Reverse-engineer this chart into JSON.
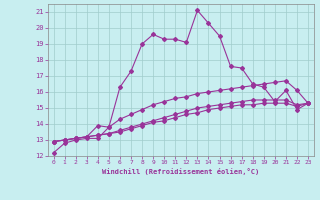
{
  "xlabel": "Windchill (Refroidissement éolien,°C)",
  "xlim": [
    -0.5,
    23.5
  ],
  "ylim": [
    12,
    21.5
  ],
  "xticks": [
    0,
    1,
    2,
    3,
    4,
    5,
    6,
    7,
    8,
    9,
    10,
    11,
    12,
    13,
    14,
    15,
    16,
    17,
    18,
    19,
    20,
    21,
    22,
    23
  ],
  "yticks": [
    12,
    13,
    14,
    15,
    16,
    17,
    18,
    19,
    20,
    21
  ],
  "background_color": "#c8eef0",
  "grid_color": "#a0cccc",
  "line_color": "#993399",
  "line1_x": [
    0,
    1,
    2,
    3,
    4,
    5,
    6,
    7,
    8,
    9,
    10,
    11,
    12,
    13,
    14,
    15,
    16,
    17,
    18,
    19,
    20,
    21,
    22,
    23
  ],
  "line1_y": [
    12.2,
    12.8,
    13.0,
    13.1,
    13.1,
    13.8,
    16.3,
    17.3,
    19.0,
    19.6,
    19.3,
    19.3,
    19.1,
    21.1,
    20.3,
    19.5,
    17.6,
    17.5,
    16.5,
    16.3,
    15.4,
    16.1,
    14.9,
    15.3
  ],
  "line2_x": [
    0,
    1,
    2,
    3,
    4,
    5,
    6,
    7,
    8,
    9,
    10,
    11,
    12,
    13,
    14,
    15,
    16,
    17,
    18,
    19,
    20,
    21,
    22,
    23
  ],
  "line2_y": [
    12.9,
    13.0,
    13.1,
    13.2,
    13.9,
    13.8,
    14.3,
    14.6,
    14.9,
    15.2,
    15.4,
    15.6,
    15.7,
    15.9,
    16.0,
    16.1,
    16.2,
    16.3,
    16.4,
    16.5,
    16.6,
    16.7,
    16.1,
    15.3
  ],
  "line3_x": [
    0,
    1,
    2,
    3,
    4,
    5,
    6,
    7,
    8,
    9,
    10,
    11,
    12,
    13,
    14,
    15,
    16,
    17,
    18,
    19,
    20,
    21,
    22,
    23
  ],
  "line3_y": [
    12.9,
    13.0,
    13.1,
    13.2,
    13.3,
    13.4,
    13.6,
    13.8,
    14.0,
    14.2,
    14.4,
    14.6,
    14.8,
    15.0,
    15.1,
    15.2,
    15.3,
    15.4,
    15.5,
    15.5,
    15.5,
    15.5,
    15.2,
    15.3
  ],
  "line4_x": [
    0,
    1,
    2,
    3,
    4,
    5,
    6,
    7,
    8,
    9,
    10,
    11,
    12,
    13,
    14,
    15,
    16,
    17,
    18,
    19,
    20,
    21,
    22,
    23
  ],
  "line4_y": [
    12.9,
    13.0,
    13.1,
    13.2,
    13.3,
    13.4,
    13.5,
    13.7,
    13.9,
    14.1,
    14.2,
    14.4,
    14.6,
    14.7,
    14.9,
    15.0,
    15.1,
    15.2,
    15.2,
    15.3,
    15.3,
    15.3,
    15.1,
    15.3
  ]
}
